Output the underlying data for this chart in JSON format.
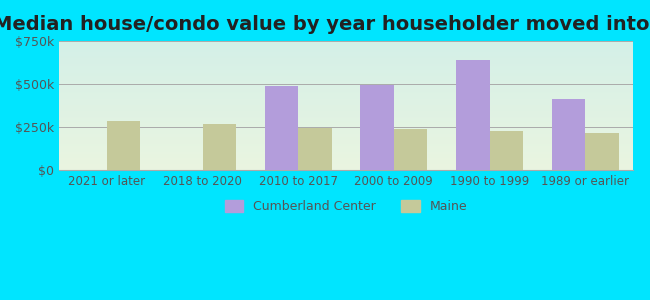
{
  "title": "Median house/condo value by year householder moved into unit",
  "categories": [
    "2021 or later",
    "2018 to 2020",
    "2010 to 2017",
    "2000 to 2009",
    "1990 to 1999",
    "1989 or earlier"
  ],
  "cumberland_values": [
    null,
    null,
    490000,
    495000,
    640000,
    415000
  ],
  "maine_values": [
    285000,
    268000,
    248000,
    242000,
    225000,
    215000
  ],
  "cumberland_color": "#b39ddb",
  "maine_color": "#c5c99a",
  "ylim": [
    0,
    750000
  ],
  "ytick_labels": [
    "$0",
    "$250k",
    "$500k",
    "$750k"
  ],
  "ytick_values": [
    0,
    250000,
    500000,
    750000
  ],
  "outer_bg": "#00e5ff",
  "bar_width": 0.35,
  "legend_labels": [
    "Cumberland Center",
    "Maine"
  ],
  "title_fontsize": 14,
  "bg_top_color": "#d4f0e8",
  "bg_bottom_color": "#eaf5e0"
}
